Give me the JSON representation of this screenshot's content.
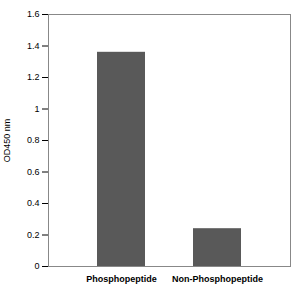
{
  "chart_data": {
    "type": "bar",
    "categories": [
      "Phosphopeptide",
      "Non-Phosphopeptide"
    ],
    "values": [
      1.36,
      0.24
    ],
    "color": "#595959",
    "y_label": "OD450 nm",
    "ylim": [
      0,
      1.6
    ],
    "yticks": [
      0,
      0.2,
      0.4,
      0.6,
      0.8,
      1,
      1.2,
      1.4,
      1.6
    ],
    "grid": false
  }
}
